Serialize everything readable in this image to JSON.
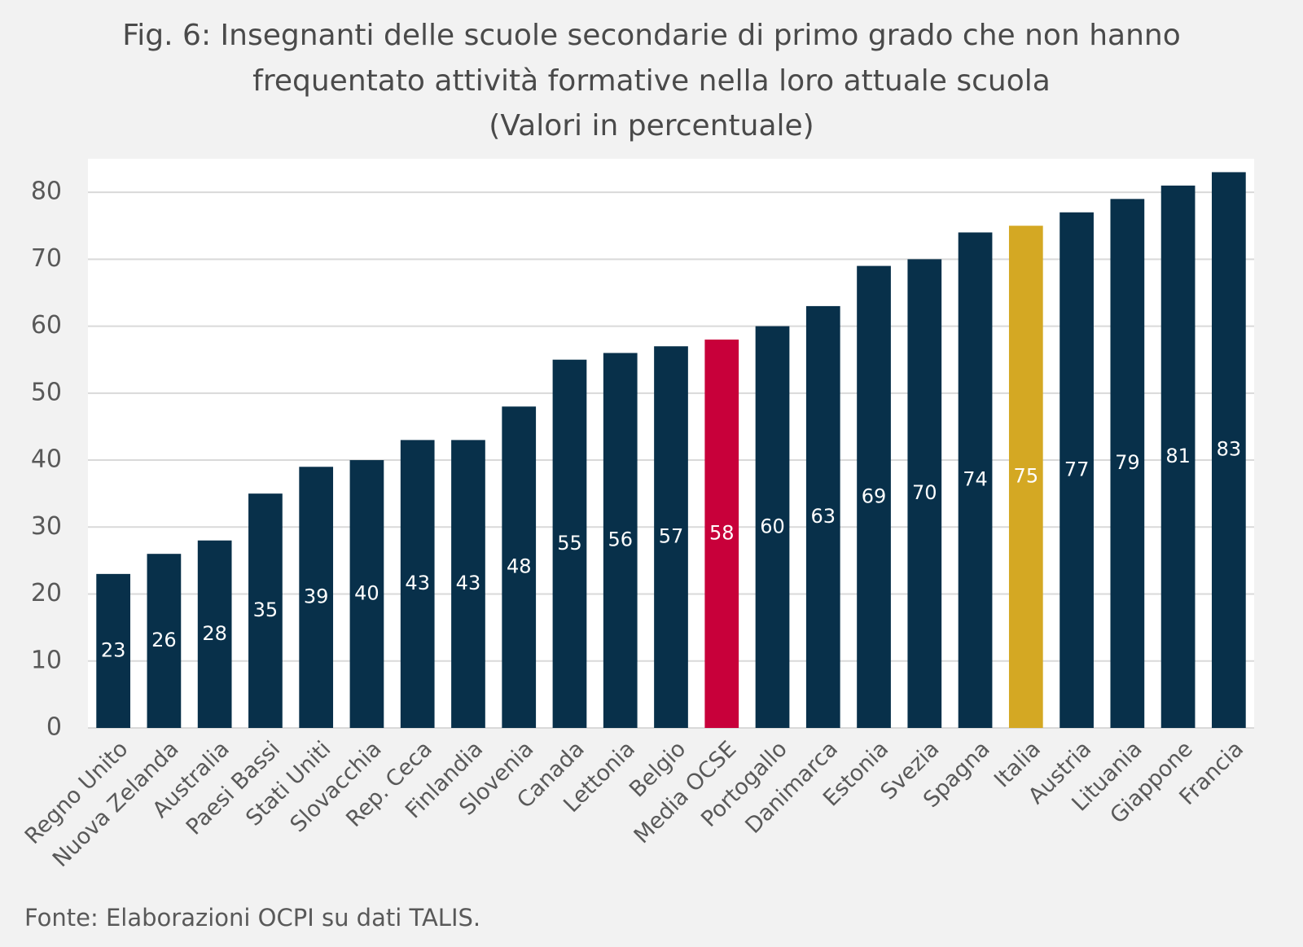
{
  "chart_data": {
    "type": "bar",
    "title": "Fig. 6: Insegnanti delle scuole secondarie di primo grado che non hanno frequentato attività formative nella loro attuale scuola",
    "subtitle": "(Valori in percentuale)",
    "source": "Fonte: Elaborazioni OCPI su dati TALIS.",
    "categories": [
      "Regno Unito",
      "Nuova Zelanda",
      "Australia",
      "Paesi Bassi",
      "Stati Uniti",
      "Slovacchia",
      "Rep. Ceca",
      "Finlandia",
      "Slovenia",
      "Canada",
      "Lettonia",
      "Belgio",
      "Media OCSE",
      "Portogallo",
      "Danimarca",
      "Estonia",
      "Svezia",
      "Spagna",
      "Italia",
      "Austria",
      "Lituania",
      "Giappone",
      "Francia"
    ],
    "values": [
      23,
      26,
      28,
      35,
      39,
      40,
      43,
      43,
      48,
      55,
      56,
      57,
      58,
      60,
      63,
      69,
      70,
      74,
      75,
      77,
      79,
      81,
      83
    ],
    "colors": [
      "#08304a",
      "#08304a",
      "#08304a",
      "#08304a",
      "#08304a",
      "#08304a",
      "#08304a",
      "#08304a",
      "#08304a",
      "#08304a",
      "#08304a",
      "#08304a",
      "#c8003a",
      "#08304a",
      "#08304a",
      "#08304a",
      "#08304a",
      "#08304a",
      "#d4a823",
      "#08304a",
      "#08304a",
      "#08304a",
      "#08304a"
    ],
    "ylim": [
      0,
      85
    ],
    "yticks": [
      0,
      10,
      20,
      30,
      40,
      50,
      60,
      70,
      80
    ],
    "grid": true
  }
}
